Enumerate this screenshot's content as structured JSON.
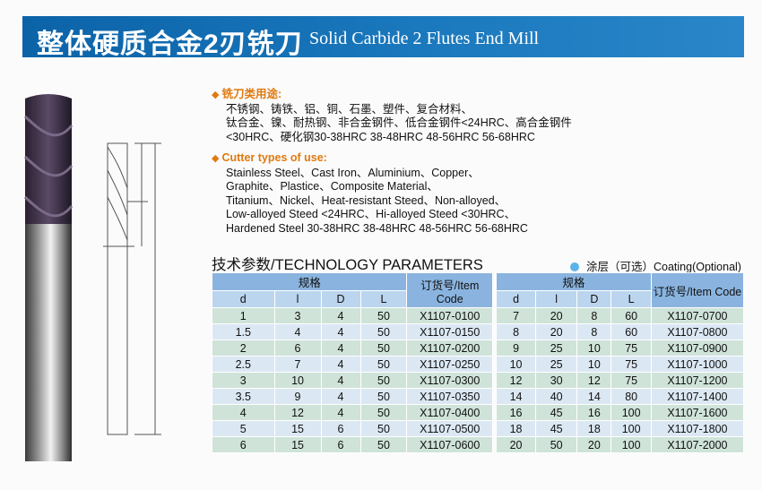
{
  "header": {
    "title_cn": "整体硬质合金2刃铣刀",
    "title_en": "Solid Carbide 2 Flutes End Mill"
  },
  "uses_cn": {
    "heading": "铣刀类用途:",
    "lines": [
      "不锈钢、铸铁、铝、铜、石墨、塑件、复合材料、",
      "钛合金、镍、耐热钢、非合金钢件、低合金钢件<24HRC、高合金钢件",
      "<30HRC、硬化钢30-38HRC 38-48HRC 48-56HRC 56-68HRC"
    ]
  },
  "uses_en": {
    "heading": "Cutter types of use:",
    "lines": [
      "Stainless Steel、Cast Iron、Aluminium、Copper、",
      "Graphite、Plastice、Composite Material、",
      "Titanium、Nickel、Heat-resistant Steed、Non-alloyed、",
      "Low-alloyed Steed <24HRC、Hi-alloyed Steed <30HRC、",
      "Hardened Steel 30-38HRC  38-48HRC  48-56HRC  56-68HRC"
    ]
  },
  "params": {
    "title": "技术参数/TECHNOLOGY PARAMETERS",
    "coating": "涂层（可选）Coating(Optional)"
  },
  "table": {
    "group_label": "规格",
    "columns": [
      "d",
      "l",
      "D",
      "L",
      "订货号/Item Code"
    ],
    "left_rows": [
      [
        "1",
        "3",
        "4",
        "50",
        "X1107-0100"
      ],
      [
        "1.5",
        "4",
        "4",
        "50",
        "X1107-0150"
      ],
      [
        "2",
        "6",
        "4",
        "50",
        "X1107-0200"
      ],
      [
        "2.5",
        "7",
        "4",
        "50",
        "X1107-0250"
      ],
      [
        "3",
        "10",
        "4",
        "50",
        "X1107-0300"
      ],
      [
        "3.5",
        "9",
        "4",
        "50",
        "X1107-0350"
      ],
      [
        "4",
        "12",
        "4",
        "50",
        "X1107-0400"
      ],
      [
        "5",
        "15",
        "6",
        "50",
        "X1107-0500"
      ],
      [
        "6",
        "15",
        "6",
        "50",
        "X1107-0600"
      ]
    ],
    "right_rows": [
      [
        "7",
        "20",
        "8",
        "60",
        "X1107-0700"
      ],
      [
        "8",
        "20",
        "8",
        "60",
        "X1107-0800"
      ],
      [
        "9",
        "25",
        "10",
        "75",
        "X1107-0900"
      ],
      [
        "10",
        "25",
        "10",
        "75",
        "X1107-1000"
      ],
      [
        "12",
        "30",
        "12",
        "75",
        "X1107-1200"
      ],
      [
        "14",
        "40",
        "14",
        "80",
        "X1107-1400"
      ],
      [
        "16",
        "45",
        "16",
        "100",
        "X1107-1600"
      ],
      [
        "18",
        "45",
        "18",
        "100",
        "X1107-1800"
      ],
      [
        "20",
        "50",
        "20",
        "100",
        "X1107-2000"
      ]
    ]
  }
}
